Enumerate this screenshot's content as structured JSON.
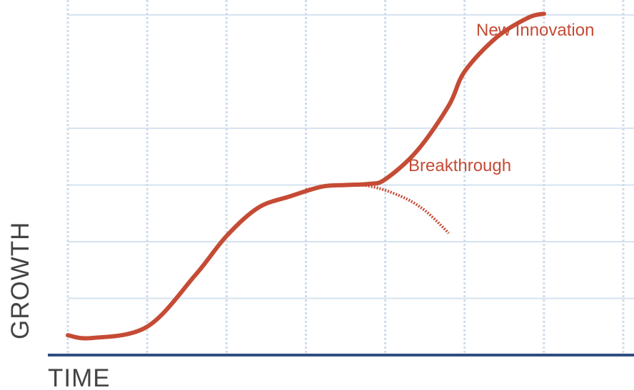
{
  "chart_data": {
    "type": "line",
    "xlabel": "TIME",
    "ylabel": "GROWTH",
    "grid": true,
    "annotations": [
      {
        "label": "New Innovation",
        "color": "#c54b35"
      },
      {
        "label": "Breakthrough",
        "color": "#c54b35"
      }
    ],
    "series": [
      {
        "style": "solid",
        "x": [
          0.0,
          0.3,
          1.0,
          1.6,
          2.0,
          2.4,
          2.8,
          3.2,
          3.5,
          3.8,
          4.0,
          4.4,
          4.8,
          5.0,
          5.4,
          5.8,
          6.0
        ],
        "y": [
          0.35,
          0.3,
          0.5,
          1.4,
          2.1,
          2.6,
          2.8,
          2.97,
          3.0,
          3.02,
          3.1,
          3.6,
          4.4,
          5.0,
          5.6,
          5.95,
          6.02
        ]
      },
      {
        "style": "dotted",
        "x": [
          3.0,
          3.4,
          3.8,
          4.2,
          4.5,
          4.8
        ],
        "y": [
          2.92,
          3.0,
          2.98,
          2.8,
          2.55,
          2.15
        ]
      }
    ],
    "xlim": [
      0,
      7
    ],
    "ylim": [
      0,
      6.2
    ],
    "xgrid": [
      0,
      1,
      2,
      3,
      4,
      5,
      6,
      7
    ],
    "ygrid": [
      1,
      2,
      3,
      4,
      6
    ],
    "colors": {
      "line": "#c54b35",
      "grid_v": "#cfdce9",
      "grid_h": "#d5e3f0",
      "axis": "#2f4f7f",
      "text": "#444444"
    }
  }
}
